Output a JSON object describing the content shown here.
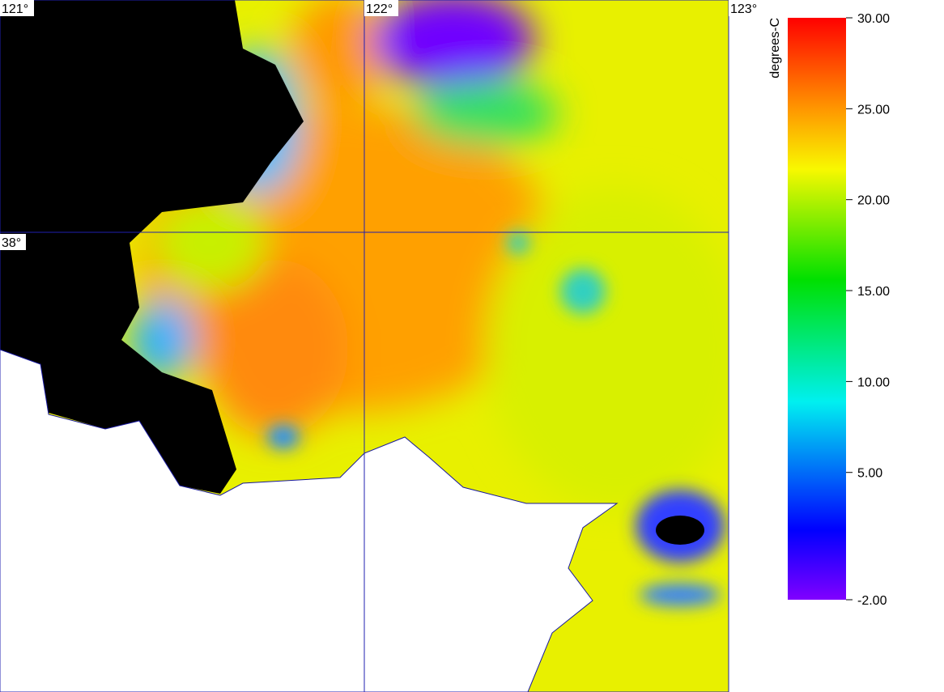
{
  "map": {
    "grid": {
      "lon_labels": [
        "121°",
        "122°",
        "123°"
      ],
      "lat_labels": [
        "38°"
      ]
    },
    "colorbar": {
      "label": "degrees-C",
      "range": [
        -2,
        30
      ],
      "ticks": [
        {
          "value": 30,
          "label": "30.00"
        },
        {
          "value": 25,
          "label": "25.00"
        },
        {
          "value": 20,
          "label": "20.00"
        },
        {
          "value": 15,
          "label": "15.00"
        },
        {
          "value": 10,
          "label": "10.00"
        },
        {
          "value": 5,
          "label": "5.00"
        },
        {
          "value": -2,
          "label": "-2.00"
        }
      ]
    }
  }
}
